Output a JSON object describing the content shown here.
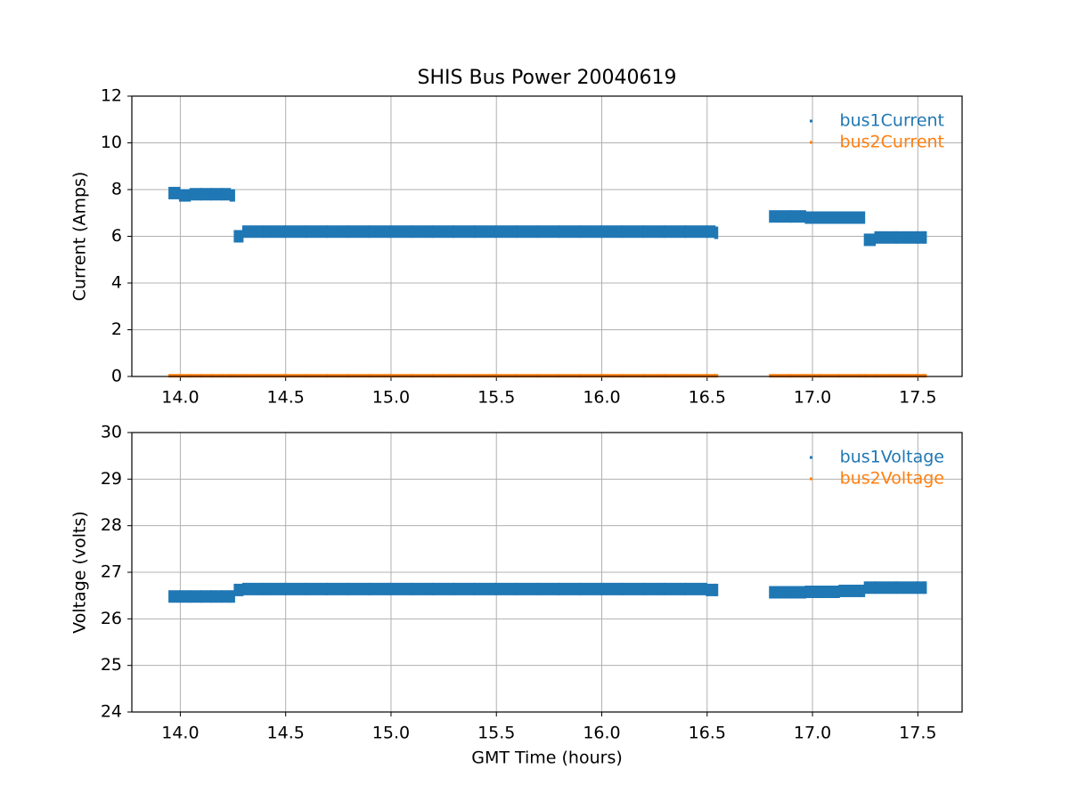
{
  "chart_data": [
    {
      "type": "scatter",
      "title": "SHIS Bus Power 20040619",
      "y_label": "Current (Amps)",
      "grid": true,
      "legend": "upper right",
      "x": [
        13.95,
        14.0,
        14.05,
        14.1,
        14.15,
        14.2,
        14.24,
        14.26,
        14.3,
        14.4,
        14.5,
        14.6,
        14.7,
        14.8,
        14.9,
        15.0,
        15.1,
        15.2,
        15.3,
        15.4,
        15.5,
        15.6,
        15.7,
        15.8,
        15.9,
        16.0,
        16.1,
        16.2,
        16.3,
        16.4,
        16.5,
        16.54,
        16.8,
        16.9,
        16.97,
        17.04,
        17.13,
        17.23,
        17.25,
        17.3,
        17.4,
        17.5,
        17.53
      ],
      "series": [
        {
          "name": "bus1Current",
          "color": "#1f77b4",
          "values": [
            7.85,
            7.75,
            7.8,
            7.8,
            7.8,
            7.8,
            7.75,
            6.0,
            6.2,
            6.2,
            6.2,
            6.2,
            6.2,
            6.2,
            6.2,
            6.2,
            6.2,
            6.2,
            6.2,
            6.2,
            6.2,
            6.2,
            6.2,
            6.2,
            6.2,
            6.2,
            6.2,
            6.2,
            6.2,
            6.2,
            6.2,
            6.15,
            6.85,
            6.85,
            6.8,
            6.8,
            6.8,
            6.8,
            5.85,
            5.95,
            5.95,
            5.95,
            5.95
          ]
        },
        {
          "name": "bus2Current",
          "color": "#ff7f0e",
          "values": [
            0.03,
            0.03,
            0.03,
            0.03,
            0.03,
            0.03,
            0.03,
            0.03,
            0.03,
            0.03,
            0.03,
            0.03,
            0.03,
            0.03,
            0.03,
            0.03,
            0.03,
            0.03,
            0.03,
            0.03,
            0.03,
            0.03,
            0.03,
            0.03,
            0.03,
            0.03,
            0.03,
            0.03,
            0.03,
            0.03,
            0.03,
            0.03,
            0.03,
            0.03,
            0.03,
            0.03,
            0.03,
            0.03,
            0.03,
            0.03,
            0.03,
            0.03,
            0.03
          ]
        }
      ],
      "xlim": [
        13.77,
        17.71
      ],
      "xticks": [
        {
          "value": 14,
          "label": "14.0"
        },
        14.5,
        {
          "value": 15,
          "label": "15.0"
        },
        15.5,
        {
          "value": 16,
          "label": "16.0"
        },
        16.5,
        {
          "value": 17,
          "label": "17.0"
        },
        17.5
      ],
      "ylim": [
        0,
        12
      ],
      "yticks": [
        0,
        2,
        4,
        6,
        8,
        10,
        12
      ]
    },
    {
      "type": "scatter",
      "x_label": "GMT Time (hours)",
      "y_label": "Voltage (volts)",
      "grid": true,
      "legend": "upper right",
      "x": [
        13.95,
        14.0,
        14.05,
        14.1,
        14.15,
        14.2,
        14.24,
        14.26,
        14.3,
        14.4,
        14.5,
        14.6,
        14.7,
        14.8,
        14.9,
        15.0,
        15.1,
        15.2,
        15.3,
        15.4,
        15.5,
        15.6,
        15.7,
        15.8,
        15.9,
        16.0,
        16.1,
        16.2,
        16.3,
        16.4,
        16.5,
        16.54,
        16.8,
        16.9,
        16.97,
        17.04,
        17.13,
        17.23,
        17.25,
        17.3,
        17.4,
        17.5,
        17.53
      ],
      "series": [
        {
          "name": "bus1Voltage",
          "color": "#1f77b4",
          "values": [
            26.48,
            26.48,
            26.48,
            26.48,
            26.48,
            26.48,
            26.48,
            26.62,
            26.64,
            26.64,
            26.64,
            26.64,
            26.64,
            26.64,
            26.64,
            26.64,
            26.64,
            26.64,
            26.64,
            26.64,
            26.64,
            26.64,
            26.64,
            26.64,
            26.64,
            26.64,
            26.64,
            26.64,
            26.64,
            26.64,
            26.62,
            26.62,
            26.57,
            26.57,
            26.58,
            26.58,
            26.6,
            26.6,
            26.67,
            26.67,
            26.67,
            26.67,
            26.67
          ]
        },
        {
          "name": "bus2Voltage",
          "color": "#ff7f0e",
          "values": [
            null,
            null,
            null,
            null,
            null,
            null,
            null,
            null,
            null,
            null,
            null,
            null,
            null,
            null,
            null,
            null,
            null,
            null,
            null,
            null,
            null,
            null,
            null,
            null,
            null,
            null,
            null,
            null,
            null,
            null,
            null,
            null,
            null,
            null,
            null,
            null,
            null,
            null,
            null,
            null,
            null,
            null,
            null
          ]
        }
      ],
      "xlim": [
        13.77,
        17.71
      ],
      "xticks": [
        {
          "value": 14,
          "label": "14.0"
        },
        14.5,
        {
          "value": 15,
          "label": "15.0"
        },
        15.5,
        {
          "value": 16,
          "label": "16.0"
        },
        16.5,
        {
          "value": 17,
          "label": "17.0"
        },
        17.5
      ],
      "ylim": [
        24,
        30
      ],
      "yticks": [
        24,
        25,
        26,
        27,
        28,
        29,
        30
      ]
    }
  ]
}
